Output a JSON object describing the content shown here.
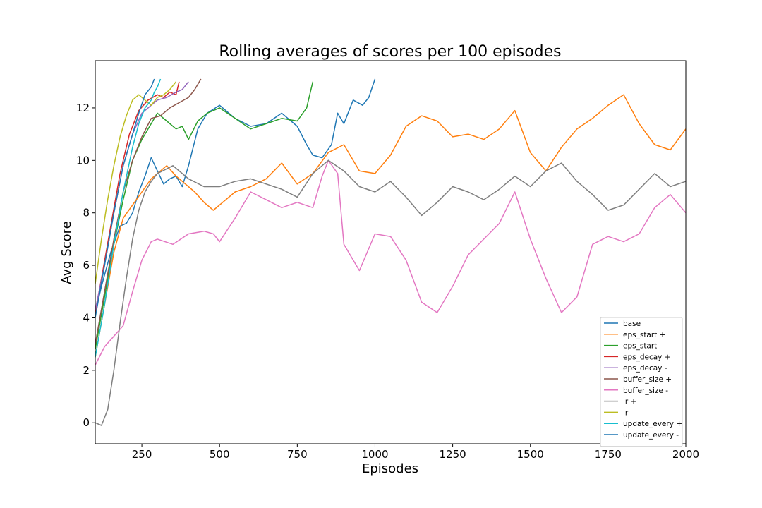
{
  "chart_data": {
    "type": "line",
    "title": "Rolling averages of scores per 100 episodes",
    "xlabel": "Episodes",
    "ylabel": "Avg Score",
    "xlim": [
      100,
      2000
    ],
    "ylim": [
      -0.8,
      13.8
    ],
    "xticks": [
      250,
      500,
      750,
      1000,
      1250,
      1500,
      1750,
      2000
    ],
    "yticks": [
      0,
      2,
      4,
      6,
      8,
      10,
      12
    ],
    "grid": false,
    "legend_position": "lower-right",
    "series": [
      {
        "name": "base",
        "color": "#1f77b4",
        "x": [
          100,
          120,
          150,
          180,
          200,
          220,
          240,
          260,
          280,
          300,
          320,
          340,
          360,
          380,
          400,
          430,
          460,
          500,
          550,
          600,
          650,
          700,
          750,
          780,
          800,
          830,
          860,
          880,
          900,
          930,
          960,
          980,
          1000
        ],
        "y": [
          4.2,
          5.2,
          6.5,
          7.5,
          7.6,
          8.0,
          8.8,
          9.4,
          10.1,
          9.6,
          9.1,
          9.3,
          9.4,
          9.0,
          9.8,
          11.2,
          11.8,
          12.1,
          11.6,
          11.3,
          11.4,
          11.8,
          11.3,
          10.6,
          10.2,
          10.1,
          10.6,
          11.8,
          11.4,
          12.3,
          12.1,
          12.4,
          13.1
        ]
      },
      {
        "name": "eps_start +",
        "color": "#ff7f0e",
        "x": [
          100,
          130,
          160,
          190,
          220,
          250,
          280,
          300,
          330,
          360,
          390,
          420,
          450,
          480,
          500,
          550,
          600,
          650,
          700,
          750,
          800,
          850,
          900,
          950,
          1000,
          1050,
          1100,
          1150,
          1200,
          1250,
          1300,
          1350,
          1400,
          1450,
          1500,
          1550,
          1600,
          1650,
          1700,
          1750,
          1800,
          1850,
          1900,
          1950,
          2000
        ],
        "y": [
          2.5,
          4.5,
          6.5,
          7.8,
          8.3,
          8.8,
          9.3,
          9.5,
          9.8,
          9.4,
          9.1,
          8.8,
          8.4,
          8.1,
          8.3,
          8.8,
          9.0,
          9.3,
          9.9,
          9.1,
          9.5,
          10.3,
          10.6,
          9.6,
          9.5,
          10.2,
          11.3,
          11.7,
          11.5,
          10.9,
          11.0,
          10.8,
          11.2,
          11.9,
          10.3,
          9.6,
          10.5,
          11.2,
          11.6,
          12.1,
          12.5,
          11.4,
          10.6,
          10.4,
          11.2
        ]
      },
      {
        "name": "eps_start -",
        "color": "#2ca02c",
        "x": [
          100,
          130,
          160,
          190,
          220,
          250,
          280,
          300,
          330,
          360,
          380,
          400,
          430,
          460,
          480,
          500,
          550,
          600,
          650,
          700,
          750,
          780,
          800
        ],
        "y": [
          2.8,
          4.8,
          6.8,
          8.5,
          10.0,
          10.8,
          11.4,
          11.8,
          11.5,
          11.2,
          11.3,
          10.8,
          11.5,
          11.8,
          11.9,
          12.0,
          11.6,
          11.2,
          11.4,
          11.6,
          11.5,
          12.0,
          13.0
        ]
      },
      {
        "name": "eps_decay +",
        "color": "#d62728",
        "x": [
          100,
          120,
          150,
          180,
          210,
          240,
          270,
          300,
          320,
          340,
          360,
          370
        ],
        "y": [
          4.2,
          5.5,
          7.5,
          9.5,
          11.0,
          11.9,
          12.3,
          12.5,
          12.4,
          12.6,
          12.5,
          13.0
        ]
      },
      {
        "name": "eps_decay -",
        "color": "#9467bd",
        "x": [
          100,
          130,
          160,
          190,
          220,
          250,
          280,
          300,
          330,
          360,
          380,
          400
        ],
        "y": [
          4.3,
          6.0,
          8.0,
          9.8,
          11.0,
          11.8,
          12.1,
          12.3,
          12.4,
          12.6,
          12.7,
          13.0
        ]
      },
      {
        "name": "buffer_size +",
        "color": "#8c564b",
        "x": [
          100,
          130,
          160,
          190,
          220,
          250,
          280,
          310,
          340,
          370,
          400,
          420,
          440
        ],
        "y": [
          3.0,
          5.0,
          7.0,
          8.8,
          10.0,
          10.9,
          11.6,
          11.7,
          12.0,
          12.2,
          12.4,
          12.7,
          13.1
        ]
      },
      {
        "name": "buffer_size -",
        "color": "#e377c2",
        "x": [
          100,
          130,
          160,
          190,
          220,
          250,
          280,
          300,
          350,
          400,
          450,
          480,
          500,
          550,
          600,
          650,
          700,
          750,
          800,
          830,
          850,
          880,
          900,
          950,
          1000,
          1050,
          1100,
          1150,
          1200,
          1250,
          1300,
          1350,
          1400,
          1450,
          1500,
          1550,
          1600,
          1650,
          1700,
          1750,
          1800,
          1850,
          1900,
          1950,
          2000
        ],
        "y": [
          2.2,
          2.9,
          3.3,
          3.7,
          5.0,
          6.2,
          6.9,
          7.0,
          6.8,
          7.2,
          7.3,
          7.2,
          6.9,
          7.8,
          8.8,
          8.5,
          8.2,
          8.4,
          8.2,
          9.4,
          10.0,
          9.5,
          6.8,
          5.8,
          7.2,
          7.1,
          6.2,
          4.6,
          4.2,
          5.2,
          6.4,
          7.0,
          7.6,
          8.8,
          7.0,
          5.5,
          4.2,
          4.8,
          6.8,
          7.1,
          6.9,
          7.2,
          8.2,
          8.7,
          8.0
        ]
      },
      {
        "name": "lr +",
        "color": "#7f7f7f",
        "x": [
          100,
          120,
          140,
          160,
          180,
          200,
          220,
          240,
          260,
          280,
          300,
          350,
          400,
          450,
          500,
          550,
          600,
          650,
          700,
          750,
          800,
          850,
          900,
          950,
          1000,
          1050,
          1100,
          1150,
          1200,
          1250,
          1300,
          1350,
          1400,
          1450,
          1500,
          1550,
          1600,
          1650,
          1700,
          1750,
          1800,
          1850,
          1900,
          1950,
          2000
        ],
        "y": [
          0.0,
          -0.1,
          0.5,
          2.0,
          3.8,
          5.5,
          7.0,
          8.1,
          8.8,
          9.2,
          9.5,
          9.8,
          9.3,
          9.0,
          9.0,
          9.2,
          9.3,
          9.1,
          8.9,
          8.6,
          9.5,
          10.0,
          9.6,
          9.0,
          8.8,
          9.2,
          8.6,
          7.9,
          8.4,
          9.0,
          8.8,
          8.5,
          8.9,
          9.4,
          9.0,
          9.6,
          9.9,
          9.2,
          8.7,
          8.1,
          8.3,
          8.9,
          9.5,
          9.0,
          9.2
        ]
      },
      {
        "name": "lr -",
        "color": "#bcbd22",
        "x": [
          100,
          120,
          140,
          160,
          180,
          200,
          220,
          240,
          260,
          280,
          300,
          320,
          340,
          360
        ],
        "y": [
          5.3,
          7.0,
          8.5,
          9.8,
          10.9,
          11.7,
          12.3,
          12.5,
          12.3,
          12.1,
          12.4,
          12.5,
          12.7,
          13.0
        ]
      },
      {
        "name": "update_every +",
        "color": "#17becf",
        "x": [
          100,
          130,
          160,
          190,
          220,
          240,
          260,
          280,
          290,
          300,
          310
        ],
        "y": [
          2.5,
          4.5,
          6.8,
          8.8,
          10.5,
          11.4,
          12.0,
          12.3,
          12.6,
          12.8,
          13.1
        ]
      },
      {
        "name": "update_every -",
        "color": "#1f77b4",
        "x": [
          100,
          130,
          160,
          190,
          220,
          240,
          260,
          280,
          290
        ],
        "y": [
          4.0,
          6.0,
          8.0,
          9.8,
          11.0,
          11.8,
          12.5,
          12.8,
          13.1
        ]
      }
    ]
  }
}
